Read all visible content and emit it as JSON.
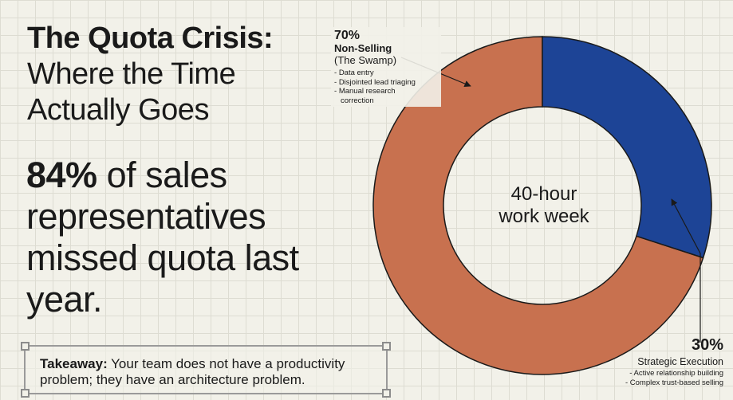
{
  "title": {
    "line1": "The Quota Crisis:",
    "line2": "Where the Time Actually Goes"
  },
  "stat": {
    "emphasis": "84%",
    "text": "of sales representatives missed quota last year."
  },
  "takeaway": {
    "label": "Takeaway:",
    "text": "Your team does not have a productivity problem; they have an architecture problem."
  },
  "chart_data": {
    "type": "pie",
    "center_label_line1": "40-hour",
    "center_label_line2": "work week",
    "slices": [
      {
        "percent_label": "70%",
        "name": "Non-Selling",
        "subtitle": "(The Swamp)",
        "value": 70,
        "color": "#c8714f",
        "bullets": [
          "Data entry",
          "Disjointed lead triaging",
          "Manual research",
          "correction"
        ]
      },
      {
        "percent_label": "30%",
        "name": "Strategic Execution",
        "value": 30,
        "color": "#1d4496",
        "bullets": [
          "Active relationship building",
          "Complex trust-based selling"
        ]
      }
    ]
  }
}
